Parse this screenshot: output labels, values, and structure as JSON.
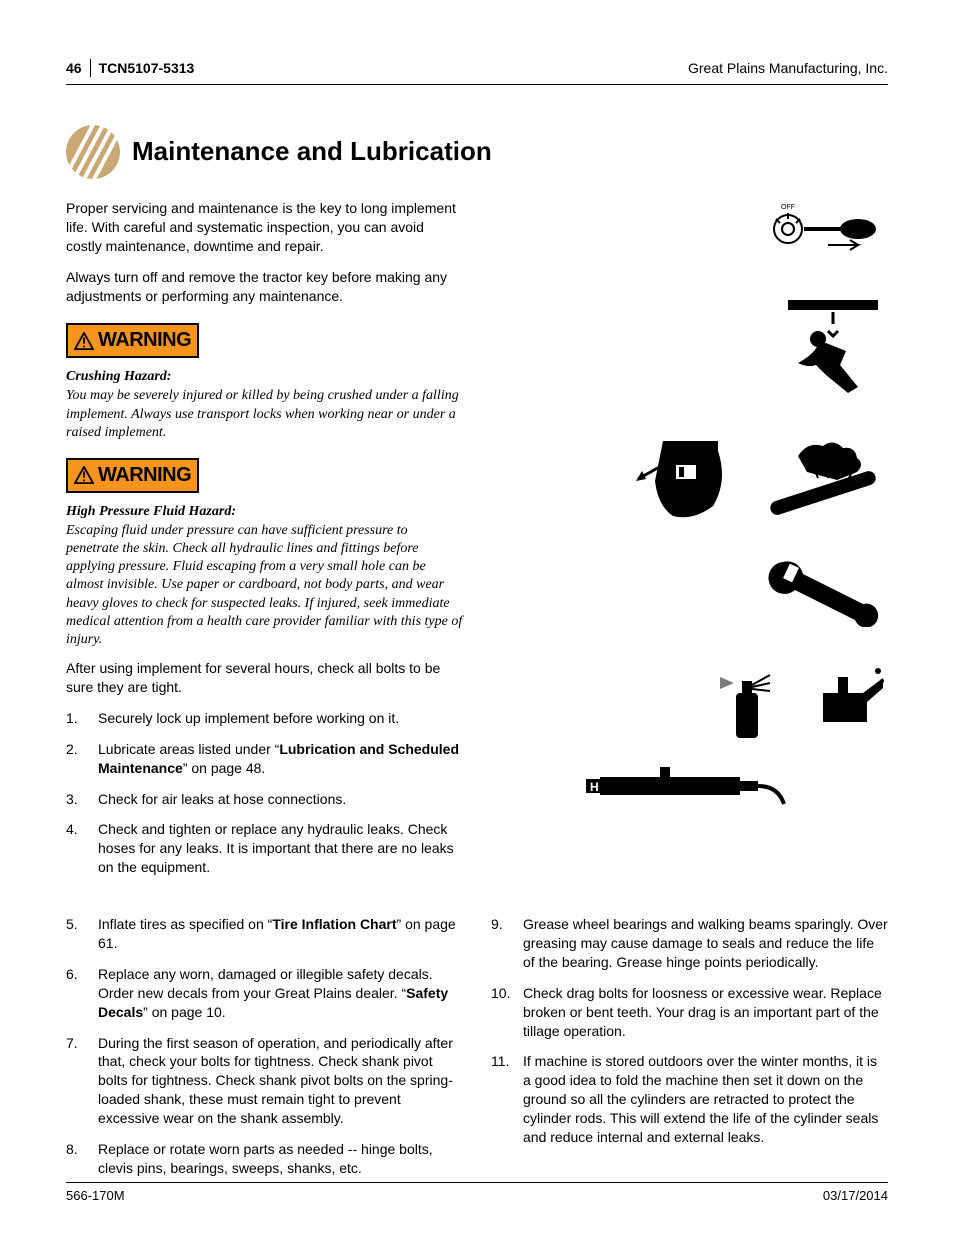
{
  "header": {
    "page_number": "46",
    "doc_code": "TCN5107-5313",
    "company": "Great Plains Manufacturing, Inc."
  },
  "colors": {
    "logo": "#c9a873",
    "warning_bg": "#f7941d",
    "text": "#000000",
    "rule": "#000000"
  },
  "title": "Maintenance and Lubrication",
  "intro_paragraphs": [
    "Proper servicing and maintenance is the key to long implement life. With careful and systematic inspection, you can avoid costly maintenance, downtime and repair.",
    "Always turn off and remove the tractor key before making any adjustments or performing any maintenance."
  ],
  "warnings": [
    {
      "label": "WARNING",
      "hazard_title": "Crushing Hazard:",
      "hazard_text": "You may be severely injured or killed by being crushed under a falling implement. Always use transport locks when working near or under a raised implement."
    },
    {
      "label": "WARNING",
      "hazard_title": "High Pressure Fluid Hazard:",
      "hazard_text": "Escaping fluid under pressure can have sufficient pressure to penetrate the skin. Check all hydraulic lines and fittings before applying pressure. Fluid escaping from a very small hole can be almost invisible. Use paper or cardboard, not body parts, and wear heavy gloves to check for suspected leaks. If injured, seek immediate medical attention from a health care provider familiar with this type of injury."
    }
  ],
  "after_warning_text": "After using implement for several hours, check all bolts to be sure they are tight.",
  "steps_left": [
    "Securely lock up implement before working on it.",
    "Lubricate areas listed under “|Lubrication and Scheduled Maintenance|” on page 48.",
    "Check for air leaks at hose connections.",
    "Check and tighten or replace any hydraulic leaks. Check hoses for any leaks. It is important that there are no leaks on the equipment.",
    "Inflate tires as specified on “|Tire Inflation Chart|” on page 61.",
    "Replace any worn, damaged or illegible safety decals. Order new decals from your Great Plains dealer. “|Safety Decals|” on page 10.",
    "During the first season of operation, and periodically after that, check your bolts for tightness. Check shank pivot bolts for tightness. Check shank pivot bolts on the spring-loaded shank, these must remain tight to prevent excessive wear on the shank assembly.",
    "Replace or rotate worn parts as needed -- hinge bolts, clevis pins, bearings, sweeps, shanks, etc."
  ],
  "steps_right": [
    "Grease wheel bearings and walking beams sparingly. Over greasing may cause damage to seals and reduce the life of the bearing. Grease hinge points periodically.",
    "Check drag bolts for loosness or excessive wear. Replace broken or bent teeth. Your drag is an important part of the tillage operation.",
    "If machine is stored outdoors over the winter months, it is a good idea to fold the machine then set it down on the ground so all the cylinders are retracted to protect the cylinder rods. This will extend the life of the cylinder seals and reduce internal and external leaks."
  ],
  "right_list_start": 9,
  "footer": {
    "left": "566-170M",
    "right": "03/17/2014"
  }
}
